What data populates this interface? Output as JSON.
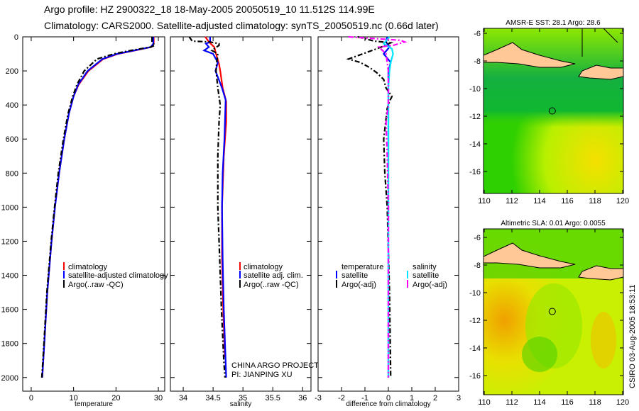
{
  "title_line1": "Argo profile: HZ 2900322_18 18-May-2005 20050519_10 11.512S 114.99E",
  "title_line2": "Climatology: CARS2000. Satellite-adjusted climatology: synTS_20050519.nc (0.66d later)",
  "credit": "CSIRO 03-Aug-2005 18:53:11",
  "project_line1": "CHINA ARGO PROJECT",
  "project_line2": "PI: JIANPING XU",
  "colors": {
    "climatology": "#ff0000",
    "satellite": "#0000ff",
    "argo": "#000000",
    "sal_satellite": "#00e5ff",
    "sal_argo": "#ff00ff"
  },
  "chart_data": [
    {
      "type": "line",
      "xlabel": "temperature",
      "ylabel": "",
      "xlim": [
        -2,
        31.5
      ],
      "ylim": [
        2080,
        0
      ],
      "xticks": [
        0,
        10,
        20,
        30
      ],
      "yticks": [
        0,
        200,
        400,
        600,
        800,
        1000,
        1200,
        1400,
        1600,
        1800,
        2000
      ],
      "legend": [
        "climatology",
        "satellite-adjusted climatology",
        "Argo(..raw -QC)"
      ],
      "series": [
        {
          "name": "climatology",
          "color": "#ff0000",
          "dash": false,
          "depth": [
            0,
            40,
            60,
            80,
            100,
            130,
            200,
            280,
            350,
            450,
            600,
            800,
            1000,
            1200,
            1500,
            1800,
            2000
          ],
          "values": [
            28.9,
            28.9,
            28.3,
            24.5,
            20.5,
            17,
            13.5,
            11.2,
            10,
            8.9,
            7.8,
            6.6,
            5.6,
            4.8,
            3.8,
            3.1,
            2.6
          ]
        },
        {
          "name": "satellite-adjusted climatology",
          "color": "#0000ff",
          "dash": false,
          "depth": [
            0,
            40,
            60,
            80,
            100,
            130,
            200,
            280,
            350,
            450,
            600,
            800,
            1000,
            1200,
            1500,
            1800,
            2000
          ],
          "values": [
            28.8,
            28.8,
            28.2,
            24.3,
            20.3,
            16.8,
            13.3,
            11.1,
            10,
            8.9,
            7.8,
            6.6,
            5.6,
            4.8,
            3.8,
            3.1,
            2.6
          ]
        },
        {
          "name": "Argo(..raw -QC)",
          "color": "#000000",
          "dash": true,
          "depth": [
            0,
            30,
            50,
            60,
            80,
            100,
            130,
            200,
            280,
            350,
            450,
            600,
            800,
            1000,
            1200,
            1500,
            1800,
            2000
          ],
          "values": [
            28.5,
            28.5,
            29.2,
            28.2,
            23.5,
            19.5,
            15.5,
            12.5,
            10.8,
            9.8,
            8.7,
            7.6,
            6.4,
            5.5,
            4.7,
            3.7,
            3,
            2.5
          ]
        }
      ]
    },
    {
      "type": "line",
      "xlabel": "salinity",
      "ylabel": "",
      "xlim": [
        33.785,
        36.14
      ],
      "ylim": [
        2080,
        0
      ],
      "xticks": [
        34,
        34.5,
        35,
        35.5,
        36
      ],
      "yticks": [
        0,
        200,
        400,
        600,
        800,
        1000,
        1200,
        1400,
        1600,
        1800,
        2000
      ],
      "legend": [
        "climatology",
        "satellite adj. clim.",
        "Argo(..raw -QC)"
      ],
      "series": [
        {
          "name": "climatology",
          "color": "#ff0000",
          "dash": false,
          "depth": [
            0,
            30,
            60,
            100,
            160,
            200,
            300,
            380,
            500,
            600,
            700,
            1000,
            1300,
            1600,
            1880
          ],
          "values": [
            34.37,
            34.43,
            34.52,
            34.55,
            34.6,
            34.62,
            34.66,
            34.72,
            34.72,
            34.7,
            34.68,
            34.65,
            34.65,
            34.67,
            34.7
          ]
        },
        {
          "name": "satellite adj. clim.",
          "color": "#0000ff",
          "dash": false,
          "depth": [
            0,
            30,
            40,
            60,
            80,
            100,
            150,
            200,
            300,
            370,
            600,
            800,
            1000,
            1300,
            1600,
            2000
          ],
          "values": [
            34.45,
            34.45,
            34.38,
            34.43,
            34.35,
            34.5,
            34.58,
            34.54,
            34.65,
            34.71,
            34.69,
            34.66,
            34.65,
            34.66,
            34.68,
            34.72
          ]
        },
        {
          "name": "Argo(..raw -QC)",
          "color": "#000000",
          "dash": true,
          "depth": [
            0,
            25,
            30,
            40,
            50,
            80,
            100,
            150,
            200,
            300,
            350,
            400,
            500,
            700,
            1000,
            1300,
            1600,
            1900,
            2000
          ],
          "values": [
            34.1,
            34.15,
            34.45,
            34.6,
            34.6,
            34.48,
            34.58,
            34.56,
            34.55,
            34.58,
            34.6,
            34.62,
            34.6,
            34.58,
            34.58,
            34.61,
            34.64,
            34.68,
            34.7
          ]
        }
      ]
    },
    {
      "type": "line",
      "xlabel": "difference from climatology",
      "ylabel": "",
      "xlim": [
        -3,
        3
      ],
      "ylim": [
        2080,
        0
      ],
      "xticks": [
        -3,
        -2,
        -1,
        0,
        1,
        2,
        3
      ],
      "yticks": [
        0,
        200,
        400,
        600,
        800,
        1000,
        1200,
        1400,
        1600,
        1800,
        2000
      ],
      "legend_left_title": "temperature",
      "legend_right_title": "salinity",
      "legend": [
        "satellite",
        "Argo(-adj)",
        "satellite",
        "Argo(-adj)"
      ],
      "series": [
        {
          "name": "temperature satellite",
          "color": "#0000ff",
          "dash": false,
          "depth": [
            0,
            30,
            60,
            100,
            150,
            200,
            300,
            400,
            2000
          ],
          "values": [
            -0.05,
            -0.1,
            0.05,
            -0.2,
            0.1,
            0,
            0,
            0,
            0
          ]
        },
        {
          "name": "temperature Argo(-adj)",
          "color": "#000000",
          "dash": true,
          "depth": [
            0,
            25,
            35,
            60,
            130,
            150,
            180,
            210,
            250,
            300,
            350,
            380,
            420,
            600,
            800,
            1000,
            1500,
            2000
          ],
          "values": [
            -1.3,
            -0.6,
            0.1,
            -0.3,
            -1.7,
            -1.2,
            -0.8,
            -0.5,
            -0.2,
            -0.1,
            0.15,
            0.05,
            -0.05,
            -0.2,
            -0.15,
            -0.05,
            0.05,
            0.1
          ]
        },
        {
          "name": "salinity satellite",
          "color": "#00e5ff",
          "dash": false,
          "depth": [
            0,
            40,
            70,
            100,
            150,
            200,
            300,
            400,
            2000
          ],
          "values": [
            0.05,
            -0.2,
            0.15,
            0.2,
            0.1,
            0.05,
            0,
            0,
            0
          ]
        },
        {
          "name": "salinity Argo(-adj)",
          "color": "#ff00ff",
          "dash": true,
          "depth": [
            0,
            20,
            30,
            50,
            60,
            100,
            200,
            400,
            500,
            700,
            1000,
            1500,
            2000
          ],
          "values": [
            -1.7,
            0.5,
            0.7,
            0.2,
            -0.4,
            -0.1,
            0,
            0,
            -0.1,
            -0.05,
            0,
            0,
            0
          ]
        }
      ]
    }
  ],
  "maps": [
    {
      "title": "AMSR-E SST: 28.1 Argo: 28.6",
      "lon_ticks": [
        110,
        112,
        114,
        116,
        118,
        120
      ],
      "lat_ticks": [
        -6,
        -8,
        -10,
        -12,
        -14,
        -16
      ],
      "argo_lon": 114.99,
      "argo_lat": -11.512
    },
    {
      "title": "Altimetric SLA: 0.01 Argo: 0.0055",
      "lon_ticks": [
        110,
        112,
        114,
        116,
        118,
        120
      ],
      "lat_ticks": [
        -6,
        -8,
        -10,
        -12,
        -14,
        -16
      ],
      "argo_lon": 114.99,
      "argo_lat": -11.512
    }
  ]
}
